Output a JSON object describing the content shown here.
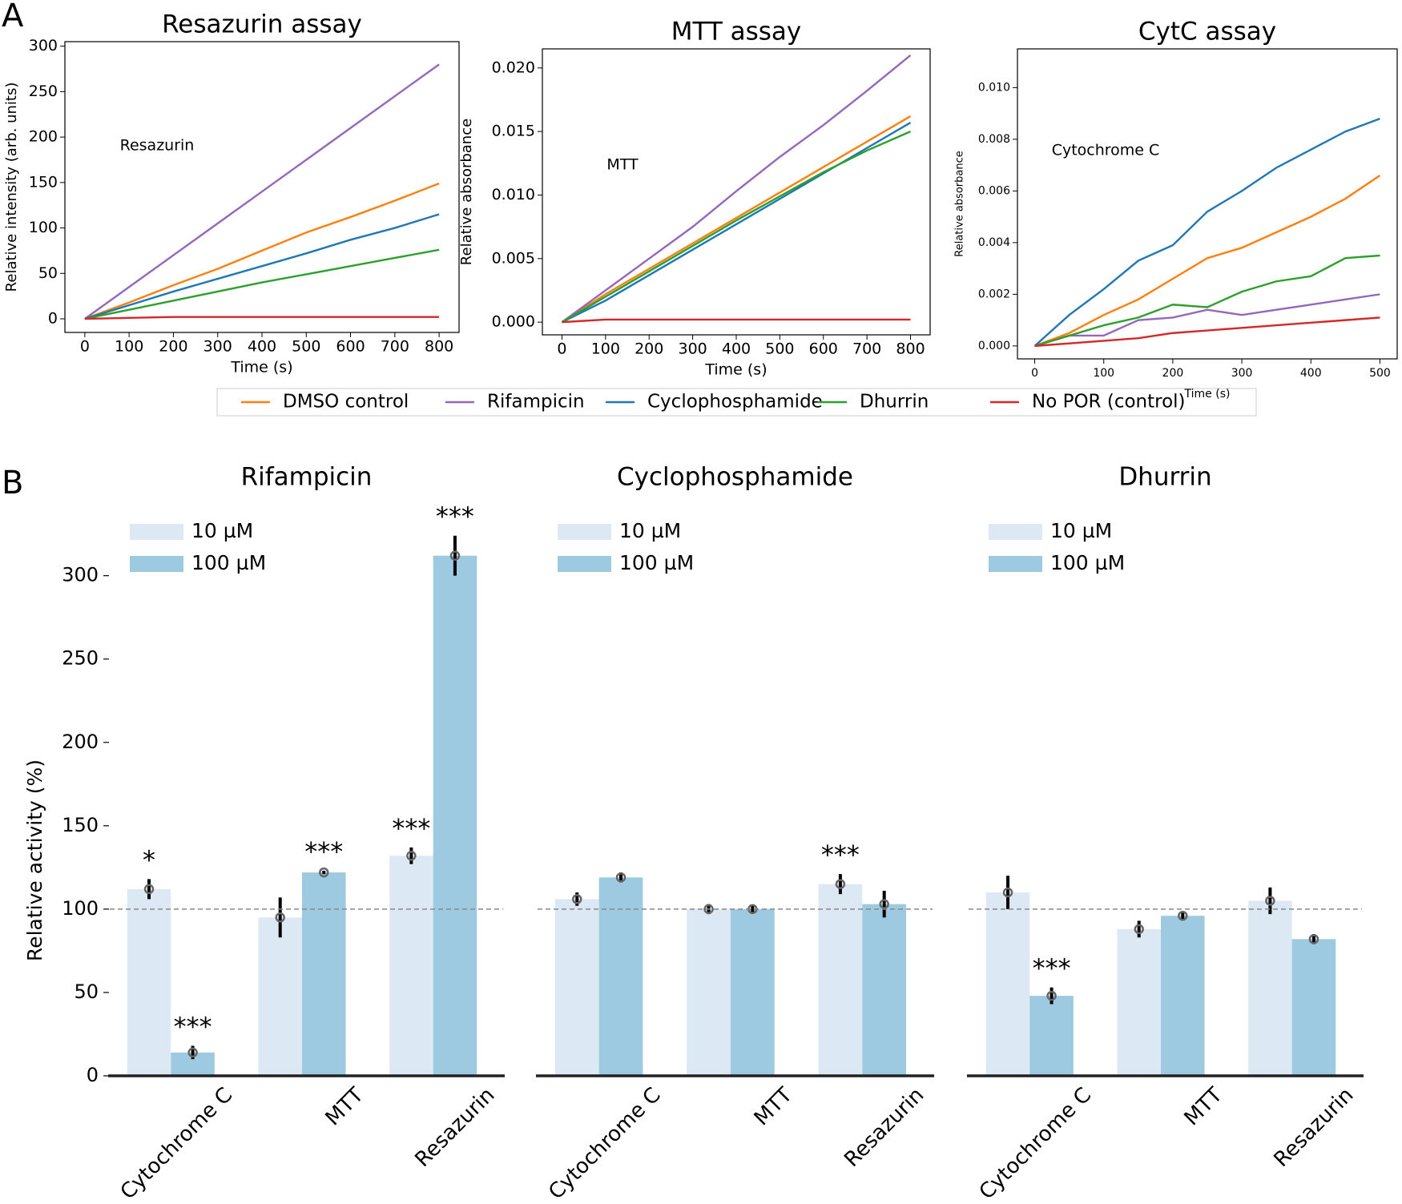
{
  "panels": [
    "A",
    "B"
  ],
  "chart_data": [
    {
      "type": "line",
      "title": "Resazurin assay",
      "inset_label": "Resazurin",
      "xlabel": "Time (s)",
      "ylabel": "Relative intensity (arb. units)",
      "x": [
        0,
        100,
        200,
        300,
        400,
        500,
        600,
        700,
        800
      ],
      "xlim": [
        -45,
        845
      ],
      "xticks": [
        0,
        100,
        200,
        300,
        400,
        500,
        600,
        700,
        800
      ],
      "ylim": [
        -15,
        305
      ],
      "yticks": [
        0,
        50,
        100,
        150,
        200,
        250,
        300
      ],
      "legend": "bottom",
      "series": [
        {
          "name": "DMSO control",
          "color": "#ff7f0e",
          "values": [
            0,
            18,
            37,
            55,
            75,
            95,
            112,
            130,
            149
          ]
        },
        {
          "name": "Rifampicin",
          "color": "#9467bd",
          "values": [
            0,
            35,
            70,
            105,
            140,
            175,
            210,
            245,
            280
          ]
        },
        {
          "name": "Cyclophosphamide",
          "color": "#1f77b4",
          "values": [
            0,
            15,
            30,
            44,
            58,
            72,
            87,
            100,
            115
          ]
        },
        {
          "name": "Dhurrin",
          "color": "#2ca02c",
          "values": [
            0,
            10,
            20,
            30,
            40,
            49,
            58,
            67,
            76
          ]
        },
        {
          "name": "No POR (control)",
          "color": "#d62728",
          "values": [
            0,
            1,
            2,
            2,
            2,
            2,
            2,
            2,
            2
          ]
        }
      ]
    },
    {
      "type": "line",
      "title": "MTT assay",
      "inset_label": "MTT",
      "xlabel": "Time (s)",
      "ylabel": "Relative absorbance",
      "x": [
        0,
        100,
        200,
        300,
        400,
        500,
        600,
        700,
        800
      ],
      "xlim": [
        -45,
        845
      ],
      "xticks": [
        0,
        100,
        200,
        300,
        400,
        500,
        600,
        700,
        800
      ],
      "ylim": [
        -0.001,
        0.0215
      ],
      "yticks": [
        {
          "value": 0,
          "label": "0.000"
        },
        {
          "value": 0.005,
          "label": "0.005"
        },
        {
          "value": 0.01,
          "label": "0.010"
        },
        {
          "value": 0.015,
          "label": "0.015"
        },
        {
          "value": 0.02,
          "label": "0.020"
        }
      ],
      "series": [
        {
          "name": "DMSO control",
          "color": "#ff7f0e",
          "values": [
            0,
            0.0022,
            0.0042,
            0.0062,
            0.0082,
            0.0102,
            0.0122,
            0.0142,
            0.0162
          ]
        },
        {
          "name": "Rifampicin",
          "color": "#9467bd",
          "values": [
            0,
            0.0025,
            0.005,
            0.0075,
            0.0103,
            0.013,
            0.0155,
            0.0182,
            0.021
          ]
        },
        {
          "name": "Cyclophosphamide",
          "color": "#1f77b4",
          "values": [
            0,
            0.0017,
            0.0037,
            0.0057,
            0.0077,
            0.0097,
            0.0117,
            0.0137,
            0.0157
          ]
        },
        {
          "name": "Dhurrin",
          "color": "#2ca02c",
          "values": [
            0,
            0.002,
            0.004,
            0.006,
            0.008,
            0.0099,
            0.0118,
            0.0135,
            0.015
          ]
        },
        {
          "name": "No POR (control)",
          "color": "#d62728",
          "values": [
            0,
            0.0002,
            0.0002,
            0.0002,
            0.0002,
            0.0002,
            0.0002,
            0.0002,
            0.0002
          ]
        }
      ]
    },
    {
      "type": "line",
      "title": "CytC assay",
      "inset_label": "Cytochrome C",
      "xlabel": "Time (s)",
      "ylabel": "Relative absorbance",
      "x": [
        0,
        50,
        100,
        150,
        200,
        250,
        300,
        350,
        400,
        450,
        500
      ],
      "xlim": [
        -25,
        525
      ],
      "xticks": [
        0,
        100,
        200,
        300,
        400,
        500
      ],
      "ylim": [
        -0.0005,
        0.0115
      ],
      "yticks": [
        {
          "value": 0,
          "label": "0.000"
        },
        {
          "value": 0.002,
          "label": "0.002"
        },
        {
          "value": 0.004,
          "label": "0.004"
        },
        {
          "value": 0.006,
          "label": "0.006"
        },
        {
          "value": 0.008,
          "label": "0.008"
        },
        {
          "value": 0.01,
          "label": "0.010"
        }
      ],
      "series": [
        {
          "name": "DMSO control",
          "color": "#ff7f0e",
          "values": [
            0,
            0.0005,
            0.0012,
            0.0018,
            0.0026,
            0.0034,
            0.0038,
            0.0044,
            0.005,
            0.0057,
            0.0066
          ]
        },
        {
          "name": "Rifampicin",
          "color": "#9467bd",
          "values": [
            0,
            0.0004,
            0.0004,
            0.001,
            0.0011,
            0.0014,
            0.0012,
            0.0014,
            0.0016,
            0.0018,
            0.002
          ]
        },
        {
          "name": "Cyclophosphamide",
          "color": "#1f77b4",
          "values": [
            0,
            0.0012,
            0.0022,
            0.0033,
            0.0039,
            0.0052,
            0.006,
            0.0069,
            0.0076,
            0.0083,
            0.0088
          ]
        },
        {
          "name": "Dhurrin",
          "color": "#2ca02c",
          "values": [
            0,
            0.0004,
            0.0008,
            0.0011,
            0.0016,
            0.0015,
            0.0021,
            0.0025,
            0.0027,
            0.0034,
            0.0035
          ]
        },
        {
          "name": "No POR (control)",
          "color": "#d62728",
          "values": [
            0,
            0.0001,
            0.0002,
            0.0003,
            0.0005,
            0.0006,
            0.0007,
            0.0008,
            0.0009,
            0.001,
            0.0011
          ]
        }
      ]
    },
    {
      "type": "bar",
      "title": "Rifampicin",
      "ylabel": "Relative activity (%)",
      "categories": [
        "Cytochrome C",
        "MTT",
        "Resazurin"
      ],
      "ylim": [
        0,
        345
      ],
      "yticks": [
        0,
        50,
        100,
        150,
        200,
        250,
        300
      ],
      "reference": 100,
      "series": [
        {
          "name": "10 µM",
          "color": "#dce9f5",
          "values": [
            112,
            95,
            132
          ],
          "errors": [
            6,
            12,
            5
          ],
          "significance": [
            "*",
            null,
            "***"
          ]
        },
        {
          "name": "100 µM",
          "color": "#9ecae1",
          "values": [
            14,
            122,
            312
          ],
          "errors": [
            4,
            1,
            12
          ],
          "significance": [
            "***",
            "***",
            "***"
          ]
        }
      ]
    },
    {
      "type": "bar",
      "title": "Cyclophosphamide",
      "categories": [
        "Cytochrome C",
        "MTT",
        "Resazurin"
      ],
      "ylim": [
        0,
        345
      ],
      "reference": 100,
      "series": [
        {
          "name": "10 µM",
          "color": "#dce9f5",
          "values": [
            106,
            100,
            115
          ],
          "errors": [
            4,
            3,
            6
          ],
          "significance": [
            null,
            null,
            "***"
          ]
        },
        {
          "name": "100 µM",
          "color": "#9ecae1",
          "values": [
            119,
            100,
            103
          ],
          "errors": [
            3,
            2,
            8
          ],
          "significance": [
            null,
            null,
            null
          ]
        }
      ]
    },
    {
      "type": "bar",
      "title": "Dhurrin",
      "categories": [
        "Cytochrome C",
        "MTT",
        "Resazurin"
      ],
      "ylim": [
        0,
        345
      ],
      "reference": 100,
      "series": [
        {
          "name": "10 µM",
          "color": "#dce9f5",
          "values": [
            110,
            88,
            105
          ],
          "errors": [
            10,
            5,
            8
          ],
          "significance": [
            null,
            null,
            null
          ]
        },
        {
          "name": "100 µM",
          "color": "#9ecae1",
          "values": [
            48,
            96,
            82
          ],
          "errors": [
            5,
            2,
            3
          ],
          "significance": [
            "***",
            null,
            null
          ]
        }
      ]
    }
  ]
}
